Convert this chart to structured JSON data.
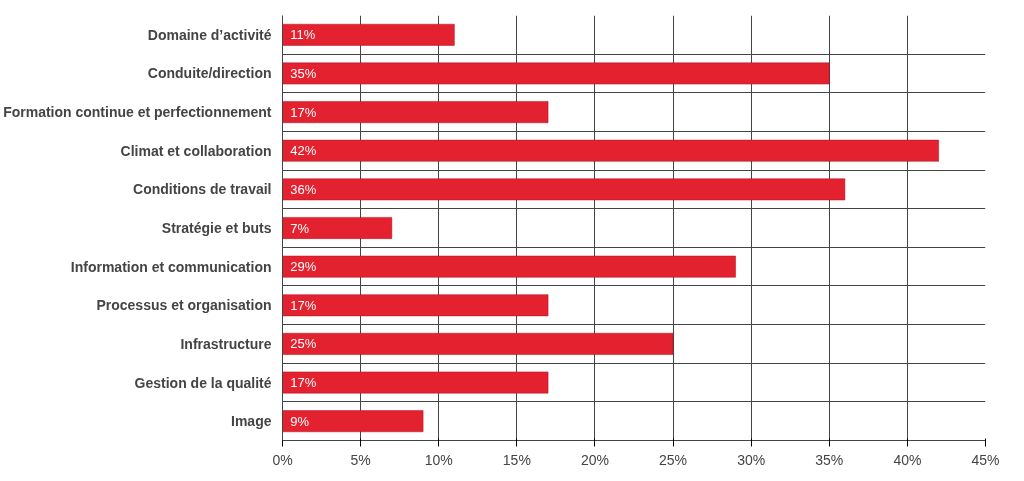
{
  "chart_data": {
    "type": "bar",
    "orientation": "horizontal",
    "categories": [
      "Domaine d’activité",
      "Conduite/direction",
      "Formation continue et perfectionnement",
      "Climat et collaboration",
      "Conditions de travail",
      "Stratégie et buts",
      "Information et communication",
      "Processus et organisation",
      "Infrastructure",
      "Gestion de la qualité",
      "Image"
    ],
    "values": [
      11,
      35,
      17,
      42,
      36,
      7,
      29,
      17,
      25,
      17,
      9
    ],
    "value_labels": [
      "11%",
      "35%",
      "17%",
      "42%",
      "36%",
      "7%",
      "29%",
      "17%",
      "25%",
      "17%",
      "9%"
    ],
    "color": "#e3212f",
    "xlim": [
      0,
      45
    ],
    "xticks": [
      {
        "value": 0,
        "label": "0%"
      },
      {
        "value": 5,
        "label": "5%"
      },
      {
        "value": 10,
        "label": "10%"
      },
      {
        "value": 15,
        "label": "15%"
      },
      {
        "value": 20,
        "label": "20%"
      },
      {
        "value": 25,
        "label": "25%"
      },
      {
        "value": 30,
        "label": "30%"
      },
      {
        "value": 35,
        "label": "35%"
      },
      {
        "value": 40,
        "label": "40%"
      },
      {
        "value": 45,
        "label": "45%"
      }
    ],
    "grid": true
  }
}
